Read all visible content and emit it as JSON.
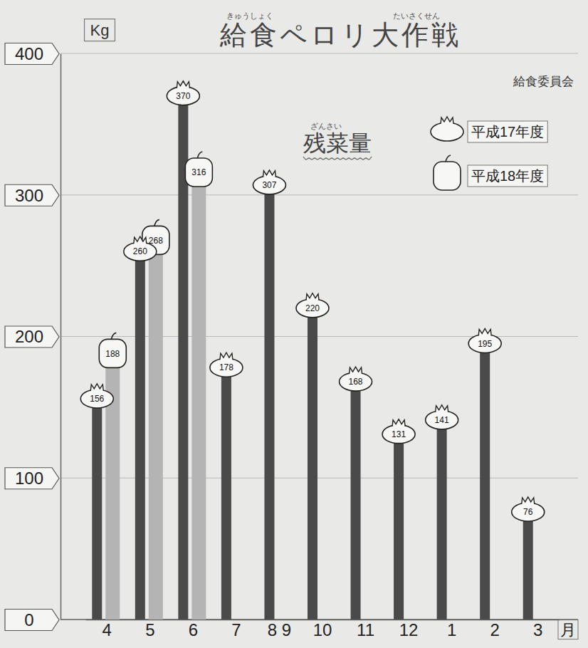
{
  "chart_data": {
    "type": "bar",
    "title": "給食ペロリ大作戦",
    "title_ruby": {
      "給食": "きゅうしょく",
      "大作戦": "たいさくせん"
    },
    "subtitle": "残菜量",
    "subtitle_ruby": {
      "残菜": "ざんさい"
    },
    "annotations": [
      "給食委員会"
    ],
    "ylabel": "Kg",
    "xlabel": "月",
    "categories": [
      "4",
      "5",
      "6",
      "7",
      "8 9",
      "10",
      "11",
      "12",
      "1",
      "2",
      "3"
    ],
    "series": [
      {
        "name": "平成17年度",
        "color": "#4a4a4a",
        "marker": "tomato",
        "values": [
          156,
          260,
          370,
          178,
          307,
          220,
          168,
          131,
          141,
          195,
          76
        ]
      },
      {
        "name": "平成18年度",
        "color": "#b4b4b4",
        "marker": "pepper",
        "values": [
          188,
          268,
          316,
          null,
          null,
          null,
          null,
          null,
          null,
          null,
          null
        ]
      }
    ],
    "ylim": [
      0,
      400
    ],
    "yticks": [
      0,
      100,
      200,
      300,
      400
    ],
    "grid": true,
    "legend": "top-right",
    "data_labels": true
  }
}
